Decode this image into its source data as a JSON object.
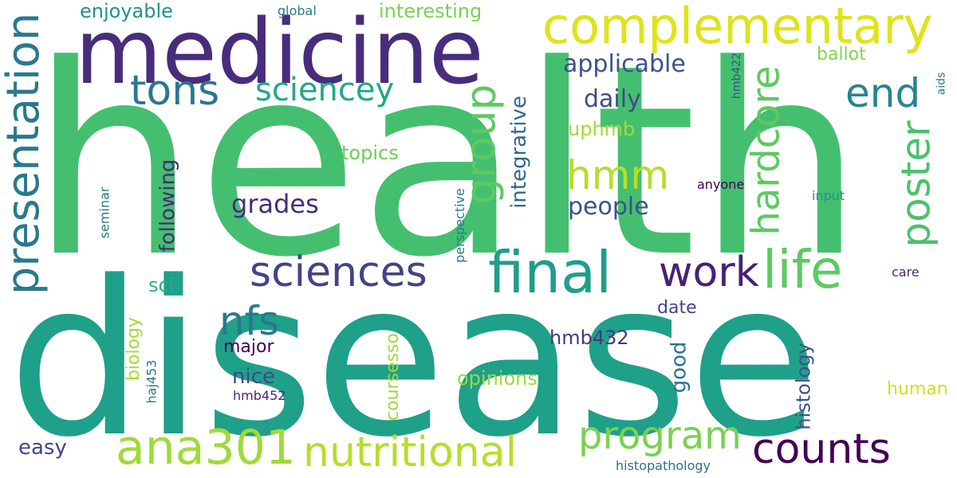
{
  "words": [
    {
      "text": "health",
      "color": "#44bf70"
    },
    {
      "text": "disease",
      "color": "#1fa088"
    },
    {
      "text": "medicine",
      "color": "#472d7b"
    },
    {
      "text": "complementary",
      "color": "#dfe318"
    },
    {
      "text": "presentation",
      "color": "#2a788e"
    },
    {
      "text": "final",
      "color": "#1f9e89"
    },
    {
      "text": "ana301",
      "color": "#a0da39"
    },
    {
      "text": "nutritional",
      "color": "#b5de2b"
    },
    {
      "text": "sciences",
      "color": "#414487"
    },
    {
      "text": "life",
      "color": "#5ec962"
    },
    {
      "text": "work",
      "color": "#482173"
    },
    {
      "text": "hmm",
      "color": "#b5de2b"
    },
    {
      "text": "tons",
      "color": "#2a788e"
    },
    {
      "text": "program",
      "color": "#7ad151"
    },
    {
      "text": "counts",
      "color": "#440154"
    },
    {
      "text": "group",
      "color": "#5ec962"
    },
    {
      "text": "hardcore",
      "color": "#5ec962"
    },
    {
      "text": "poster",
      "color": "#4ac16d"
    },
    {
      "text": "end",
      "color": "#25858e"
    },
    {
      "text": "nfs",
      "color": "#2a788e"
    },
    {
      "text": "sciencey",
      "color": "#22a884"
    },
    {
      "text": "applicable",
      "color": "#3b528b"
    },
    {
      "text": "daily",
      "color": "#3e4a89"
    },
    {
      "text": "people",
      "color": "#3b528b"
    },
    {
      "text": "grades",
      "color": "#472d7b"
    },
    {
      "text": "following",
      "color": "#482878"
    },
    {
      "text": "integrative",
      "color": "#31688e"
    },
    {
      "text": "enjoyable",
      "color": "#21918c"
    },
    {
      "text": "interesting",
      "color": "#7ad151"
    },
    {
      "text": "ballot",
      "color": "#84d44b"
    },
    {
      "text": "global",
      "color": "#2a788e"
    },
    {
      "text": "uphmb",
      "color": "#a0da39"
    },
    {
      "text": "topics",
      "color": "#6ece58"
    },
    {
      "text": "sci",
      "color": "#29af7f"
    },
    {
      "text": "date",
      "color": "#3e4989"
    },
    {
      "text": "biology",
      "color": "#a5db36"
    },
    {
      "text": "major",
      "color": "#440154"
    },
    {
      "text": "nice",
      "color": "#3e4989"
    },
    {
      "text": "hmb432",
      "color": "#443983"
    },
    {
      "text": "good",
      "color": "#2c728e"
    },
    {
      "text": "coursesso",
      "color": "#a0da39"
    },
    {
      "text": "opinions",
      "color": "#9dd93b"
    },
    {
      "text": "histology",
      "color": "#3b528b"
    },
    {
      "text": "human",
      "color": "#d0e11c"
    },
    {
      "text": "easy",
      "color": "#3e4989"
    },
    {
      "text": "haj453",
      "color": "#2a788e"
    },
    {
      "text": "hmb452",
      "color": "#482878"
    },
    {
      "text": "seminar",
      "color": "#2a788e"
    },
    {
      "text": "perspective",
      "color": "#2a788e"
    },
    {
      "text": "anyone",
      "color": "#440154"
    },
    {
      "text": "hmb422",
      "color": "#3b528b"
    },
    {
      "text": "input",
      "color": "#21918c"
    },
    {
      "text": "care",
      "color": "#482878"
    },
    {
      "text": "aids",
      "color": "#2a788e"
    },
    {
      "text": "histopathology",
      "color": "#2c728e"
    }
  ]
}
